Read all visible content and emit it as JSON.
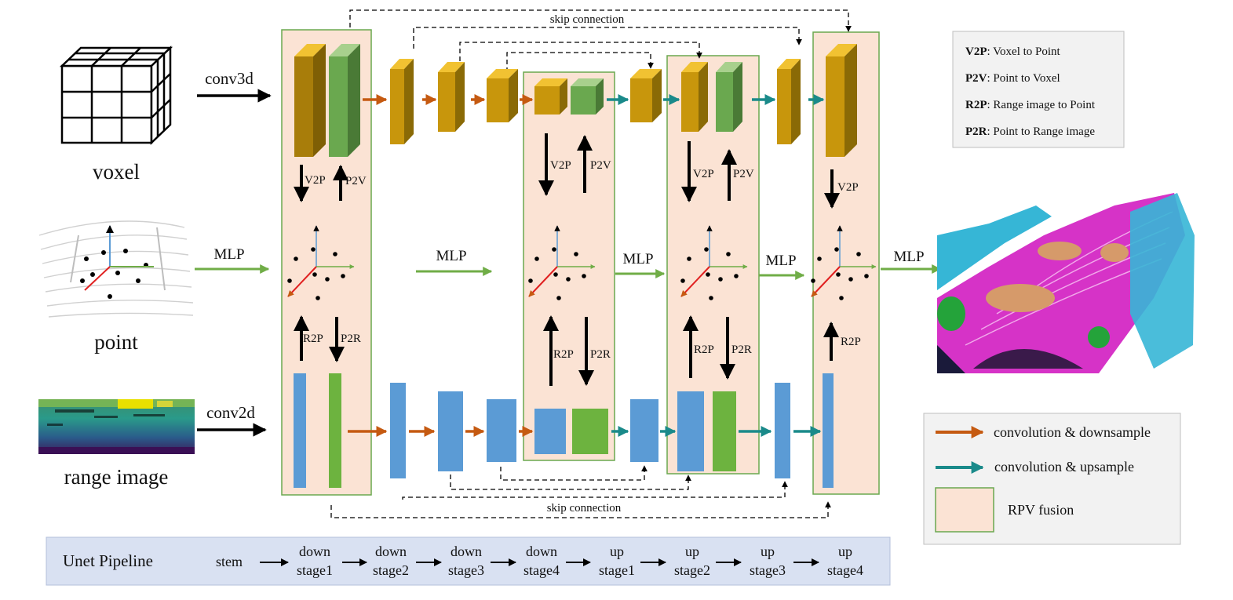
{
  "inputs": {
    "voxel": "voxel",
    "point": "point",
    "range": "range image"
  },
  "ops": {
    "conv3d": "conv3d",
    "conv2d": "conv2d",
    "mlp": "MLP",
    "v2p": "V2P",
    "p2v": "P2V",
    "r2p": "R2P",
    "p2r": "P2R"
  },
  "skip_connection": "skip connection",
  "legend_top": {
    "items": [
      {
        "key": "V2P",
        "text": ": Voxel to Point"
      },
      {
        "key": "P2V",
        "text": ": Point to Voxel"
      },
      {
        "key": "R2P",
        "text": ": Range image to Point"
      },
      {
        "key": "P2R",
        "text": ": Point to Range image"
      }
    ]
  },
  "legend_bottom": {
    "down": "convolution & downsample",
    "up": "convolution & upsample",
    "fusion": "RPV fusion"
  },
  "pipeline": {
    "title": "Unet Pipeline",
    "stem": "stem",
    "stages": [
      {
        "line1": "down",
        "line2": "stage1"
      },
      {
        "line1": "down",
        "line2": "stage2"
      },
      {
        "line1": "down",
        "line2": "stage3"
      },
      {
        "line1": "down",
        "line2": "stage4"
      },
      {
        "line1": "up",
        "line2": "stage1"
      },
      {
        "line1": "up",
        "line2": "stage2"
      },
      {
        "line1": "up",
        "line2": "stage3"
      },
      {
        "line1": "up",
        "line2": "stage4"
      }
    ]
  },
  "colors": {
    "fusion_fill": "#fbe3d4",
    "fusion_border": "#6aa84f",
    "voxel_block": "#c8960c",
    "voxel_green": "#6aa84f",
    "range_blue": "#5b9bd5",
    "range_green": "#6db33f",
    "down_arrow": "#c55a11",
    "up_arrow": "#1a8a8a",
    "mlp_arrow": "#70ad47",
    "pipeline_bg": "#d9e1f2"
  }
}
